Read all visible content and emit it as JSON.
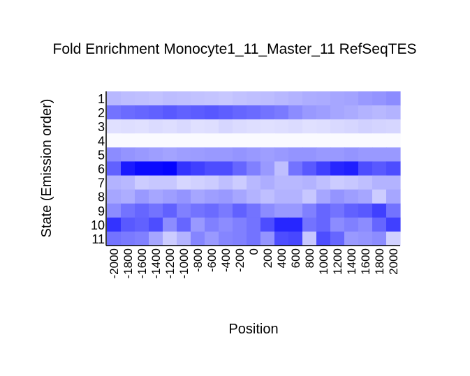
{
  "chart_data": {
    "type": "heatmap",
    "title": "Fold Enrichment Monocyte1_11_Master_11 RefSeqTES",
    "xlabel": "Position",
    "ylabel": "State (Emission order)",
    "x": [
      "-2000",
      "-1800",
      "-1600",
      "-1400",
      "-1200",
      "-1000",
      "-800",
      "-600",
      "-400",
      "-200",
      "0",
      "200",
      "400",
      "600",
      "800",
      "1000",
      "1200",
      "1400",
      "1600",
      "1800",
      "2000"
    ],
    "y": [
      "1",
      "2",
      "3",
      "4",
      "5",
      "6",
      "7",
      "8",
      "9",
      "10",
      "11"
    ],
    "value_range": [
      0,
      1
    ],
    "color_low": "#ffffff",
    "color_high": "#0000ff",
    "values": [
      [
        0.28,
        0.26,
        0.25,
        0.24,
        0.26,
        0.25,
        0.24,
        0.23,
        0.22,
        0.24,
        0.25,
        0.26,
        0.28,
        0.3,
        0.32,
        0.33,
        0.35,
        0.36,
        0.4,
        0.42,
        0.45
      ],
      [
        0.55,
        0.58,
        0.6,
        0.62,
        0.65,
        0.62,
        0.64,
        0.66,
        0.63,
        0.6,
        0.58,
        0.55,
        0.52,
        0.45,
        0.4,
        0.38,
        0.35,
        0.33,
        0.3,
        0.28,
        0.3
      ],
      [
        0.12,
        0.13,
        0.12,
        0.14,
        0.13,
        0.15,
        0.12,
        0.13,
        0.16,
        0.14,
        0.13,
        0.12,
        0.13,
        0.14,
        0.12,
        0.13,
        0.15,
        0.16,
        0.18,
        0.17,
        0.16
      ],
      [
        0.02,
        0.02,
        0.02,
        0.02,
        0.02,
        0.02,
        0.02,
        0.02,
        0.02,
        0.02,
        0.02,
        0.02,
        0.02,
        0.02,
        0.02,
        0.02,
        0.02,
        0.02,
        0.02,
        0.02,
        0.02
      ],
      [
        0.45,
        0.42,
        0.4,
        0.38,
        0.36,
        0.38,
        0.39,
        0.4,
        0.4,
        0.42,
        0.4,
        0.38,
        0.4,
        0.42,
        0.42,
        0.4,
        0.4,
        0.42,
        0.4,
        0.4,
        0.4
      ],
      [
        0.62,
        0.9,
        0.96,
        0.96,
        0.98,
        0.8,
        0.75,
        0.7,
        0.7,
        0.6,
        0.5,
        0.4,
        0.25,
        0.55,
        0.65,
        0.75,
        0.85,
        0.88,
        0.7,
        0.65,
        0.7
      ],
      [
        0.3,
        0.28,
        0.2,
        0.22,
        0.22,
        0.16,
        0.18,
        0.2,
        0.25,
        0.2,
        0.28,
        0.32,
        0.28,
        0.28,
        0.3,
        0.25,
        0.2,
        0.22,
        0.25,
        0.3,
        0.3
      ],
      [
        0.35,
        0.32,
        0.4,
        0.35,
        0.38,
        0.42,
        0.35,
        0.38,
        0.4,
        0.35,
        0.3,
        0.25,
        0.3,
        0.3,
        0.22,
        0.35,
        0.42,
        0.38,
        0.35,
        0.2,
        0.35
      ],
      [
        0.45,
        0.55,
        0.6,
        0.55,
        0.62,
        0.5,
        0.55,
        0.58,
        0.52,
        0.62,
        0.55,
        0.45,
        0.4,
        0.4,
        0.5,
        0.6,
        0.55,
        0.62,
        0.65,
        0.75,
        0.55
      ],
      [
        0.8,
        0.65,
        0.62,
        0.7,
        0.45,
        0.6,
        0.4,
        0.5,
        0.45,
        0.5,
        0.55,
        0.7,
        0.85,
        0.85,
        0.55,
        0.6,
        0.45,
        0.5,
        0.45,
        0.6,
        0.75
      ],
      [
        0.55,
        0.52,
        0.5,
        0.35,
        0.2,
        0.3,
        0.48,
        0.4,
        0.48,
        0.5,
        0.55,
        0.42,
        0.7,
        0.72,
        0.22,
        0.7,
        0.6,
        0.4,
        0.42,
        0.45,
        0.18
      ]
    ]
  }
}
